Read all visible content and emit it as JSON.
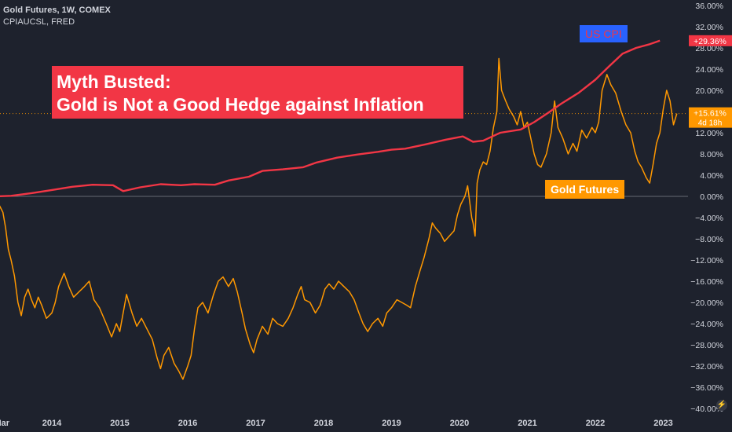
{
  "header": {
    "line1": "Gold Futures, 1W, COMEX",
    "line2": "CPIAUCSL, FRED"
  },
  "banner": {
    "line1": "Myth Busted:",
    "line2": "Gold is Not a Good Hedge against Inflation"
  },
  "annotations": {
    "cpi": "US CPI",
    "gold": "Gold Futures"
  },
  "badge_icon": "lightning-icon",
  "badge_glyph": "⚡",
  "colors": {
    "background": "#1e222d",
    "cpi": "#f23645",
    "gold": "#ff9800",
    "cpi_tag_bg": "#2962ff",
    "axis_text": "#d1d4dc",
    "zero_line": "#787b86"
  },
  "chart_data": {
    "type": "line",
    "x_axis": {
      "labels": [
        "Mar",
        "2014",
        "2015",
        "2016",
        "2017",
        "2018",
        "2019",
        "2020",
        "2021",
        "2022",
        "2023"
      ],
      "range": [
        2013.16,
        2023.25
      ]
    },
    "y_axis": {
      "unit": "%",
      "ticks": [
        36,
        32,
        28,
        24,
        20,
        16,
        12,
        8,
        4,
        0,
        -4,
        -8,
        -12,
        -16,
        -20,
        -24,
        -28,
        -32,
        -36,
        -40
      ],
      "tick_labels": [
        "36.00%",
        "32.00%",
        "28.00%",
        "24.00%",
        "20.00%",
        "16.00%",
        "12.00%",
        "8.00%",
        "4.00%",
        "0.00%",
        "−4.00%",
        "−8.00%",
        "−12.00%",
        "−16.00%",
        "−20.00%",
        "−24.00%",
        "−28.00%",
        "−32.00%",
        "−36.00%",
        "−40.00%"
      ],
      "range": [
        -40,
        36
      ],
      "position": "right"
    },
    "zero_line": 0,
    "last_value_labels": {
      "cpi": "+29.36%",
      "gold": "+15.61%",
      "gold_countdown": "4d 18h"
    },
    "series": [
      {
        "name": "CPIAUCSL, FRED",
        "color": "#f23645",
        "last": 29.36,
        "points": [
          [
            2013.16,
            0.0
          ],
          [
            2013.4,
            0.1
          ],
          [
            2013.7,
            0.6
          ],
          [
            2014.0,
            1.2
          ],
          [
            2014.3,
            1.8
          ],
          [
            2014.6,
            2.2
          ],
          [
            2014.9,
            2.1
          ],
          [
            2015.05,
            1.0
          ],
          [
            2015.3,
            1.7
          ],
          [
            2015.6,
            2.3
          ],
          [
            2015.9,
            2.1
          ],
          [
            2016.1,
            2.3
          ],
          [
            2016.4,
            2.2
          ],
          [
            2016.6,
            3.0
          ],
          [
            2016.9,
            3.7
          ],
          [
            2017.1,
            4.8
          ],
          [
            2017.4,
            5.1
          ],
          [
            2017.7,
            5.5
          ],
          [
            2017.9,
            6.4
          ],
          [
            2018.2,
            7.3
          ],
          [
            2018.5,
            7.9
          ],
          [
            2018.8,
            8.4
          ],
          [
            2019.0,
            8.8
          ],
          [
            2019.2,
            9.0
          ],
          [
            2019.5,
            9.8
          ],
          [
            2019.8,
            10.7
          ],
          [
            2020.05,
            11.3
          ],
          [
            2020.2,
            10.3
          ],
          [
            2020.35,
            10.5
          ],
          [
            2020.6,
            12.0
          ],
          [
            2020.9,
            12.6
          ],
          [
            2021.1,
            14.0
          ],
          [
            2021.3,
            15.7
          ],
          [
            2021.5,
            17.5
          ],
          [
            2021.75,
            19.5
          ],
          [
            2022.0,
            22.0
          ],
          [
            2022.2,
            24.5
          ],
          [
            2022.4,
            26.9
          ],
          [
            2022.6,
            28.0
          ],
          [
            2022.8,
            28.7
          ],
          [
            2022.95,
            29.36
          ]
        ]
      },
      {
        "name": "Gold Futures, 1W, COMEX",
        "color": "#ff9800",
        "last": 15.61,
        "points": [
          [
            2013.16,
            0
          ],
          [
            2013.22,
            -1.5
          ],
          [
            2013.28,
            -3.0
          ],
          [
            2013.32,
            -6.0
          ],
          [
            2013.36,
            -10.0
          ],
          [
            2013.4,
            -12.0
          ],
          [
            2013.45,
            -15.0
          ],
          [
            2013.5,
            -20.0
          ],
          [
            2013.55,
            -22.5
          ],
          [
            2013.6,
            -19.0
          ],
          [
            2013.65,
            -17.5
          ],
          [
            2013.7,
            -19.5
          ],
          [
            2013.75,
            -21.0
          ],
          [
            2013.8,
            -19.0
          ],
          [
            2013.85,
            -20.5
          ],
          [
            2013.92,
            -23.0
          ],
          [
            2014.0,
            -22.0
          ],
          [
            2014.05,
            -20.0
          ],
          [
            2014.1,
            -17.0
          ],
          [
            2014.18,
            -14.5
          ],
          [
            2014.25,
            -17.0
          ],
          [
            2014.32,
            -19.0
          ],
          [
            2014.4,
            -18.0
          ],
          [
            2014.48,
            -17.0
          ],
          [
            2014.55,
            -16.0
          ],
          [
            2014.62,
            -19.5
          ],
          [
            2014.7,
            -21.0
          ],
          [
            2014.8,
            -24.0
          ],
          [
            2014.88,
            -26.5
          ],
          [
            2014.95,
            -24.0
          ],
          [
            2015.0,
            -25.5
          ],
          [
            2015.05,
            -22.0
          ],
          [
            2015.1,
            -18.5
          ],
          [
            2015.18,
            -22.0
          ],
          [
            2015.25,
            -24.5
          ],
          [
            2015.32,
            -23.0
          ],
          [
            2015.4,
            -25.0
          ],
          [
            2015.48,
            -27.0
          ],
          [
            2015.55,
            -30.5
          ],
          [
            2015.6,
            -32.5
          ],
          [
            2015.65,
            -30.0
          ],
          [
            2015.72,
            -28.5
          ],
          [
            2015.8,
            -31.5
          ],
          [
            2015.87,
            -33.0
          ],
          [
            2015.93,
            -34.5
          ],
          [
            2016.0,
            -32.0
          ],
          [
            2016.05,
            -30.0
          ],
          [
            2016.1,
            -25.0
          ],
          [
            2016.15,
            -21.0
          ],
          [
            2016.22,
            -20.0
          ],
          [
            2016.3,
            -22.0
          ],
          [
            2016.38,
            -18.5
          ],
          [
            2016.45,
            -16.0
          ],
          [
            2016.52,
            -15.2
          ],
          [
            2016.6,
            -17.0
          ],
          [
            2016.67,
            -15.5
          ],
          [
            2016.73,
            -18.0
          ],
          [
            2016.8,
            -22.0
          ],
          [
            2016.85,
            -25.0
          ],
          [
            2016.92,
            -28.0
          ],
          [
            2016.97,
            -29.5
          ],
          [
            2017.02,
            -27.0
          ],
          [
            2017.1,
            -24.5
          ],
          [
            2017.18,
            -26.0
          ],
          [
            2017.25,
            -23.0
          ],
          [
            2017.32,
            -24.0
          ],
          [
            2017.4,
            -24.5
          ],
          [
            2017.48,
            -23.0
          ],
          [
            2017.55,
            -21.0
          ],
          [
            2017.62,
            -18.5
          ],
          [
            2017.67,
            -17.0
          ],
          [
            2017.72,
            -19.5
          ],
          [
            2017.8,
            -20.0
          ],
          [
            2017.88,
            -22.0
          ],
          [
            2017.95,
            -20.5
          ],
          [
            2018.02,
            -17.5
          ],
          [
            2018.08,
            -16.5
          ],
          [
            2018.15,
            -17.5
          ],
          [
            2018.22,
            -16.0
          ],
          [
            2018.3,
            -17.0
          ],
          [
            2018.38,
            -18.0
          ],
          [
            2018.45,
            -19.5
          ],
          [
            2018.52,
            -22.0
          ],
          [
            2018.58,
            -24.0
          ],
          [
            2018.65,
            -25.5
          ],
          [
            2018.72,
            -24.0
          ],
          [
            2018.8,
            -23.0
          ],
          [
            2018.87,
            -24.5
          ],
          [
            2018.93,
            -22.0
          ],
          [
            2019.0,
            -21.0
          ],
          [
            2019.08,
            -19.5
          ],
          [
            2019.15,
            -20.0
          ],
          [
            2019.22,
            -20.5
          ],
          [
            2019.28,
            -21.0
          ],
          [
            2019.35,
            -17.0
          ],
          [
            2019.42,
            -14.0
          ],
          [
            2019.48,
            -11.5
          ],
          [
            2019.55,
            -8.0
          ],
          [
            2019.6,
            -5.0
          ],
          [
            2019.65,
            -6.0
          ],
          [
            2019.72,
            -7.0
          ],
          [
            2019.78,
            -8.5
          ],
          [
            2019.85,
            -7.5
          ],
          [
            2019.92,
            -6.5
          ],
          [
            2019.97,
            -3.5
          ],
          [
            2020.02,
            -1.5
          ],
          [
            2020.08,
            0.0
          ],
          [
            2020.12,
            2.0
          ],
          [
            2020.18,
            -4.0
          ],
          [
            2020.2,
            -5.0
          ],
          [
            2020.23,
            -7.5
          ],
          [
            2020.26,
            2.5
          ],
          [
            2020.3,
            5.0
          ],
          [
            2020.35,
            6.5
          ],
          [
            2020.4,
            6.0
          ],
          [
            2020.45,
            8.5
          ],
          [
            2020.5,
            13.0
          ],
          [
            2020.55,
            16.0
          ],
          [
            2020.58,
            26.0
          ],
          [
            2020.62,
            20.0
          ],
          [
            2020.68,
            18.0
          ],
          [
            2020.73,
            16.5
          ],
          [
            2020.8,
            15.0
          ],
          [
            2020.85,
            13.5
          ],
          [
            2020.9,
            16.0
          ],
          [
            2020.95,
            13.0
          ],
          [
            2021.0,
            14.0
          ],
          [
            2021.05,
            11.0
          ],
          [
            2021.1,
            8.0
          ],
          [
            2021.15,
            6.0
          ],
          [
            2021.2,
            5.5
          ],
          [
            2021.28,
            8.0
          ],
          [
            2021.35,
            12.0
          ],
          [
            2021.4,
            18.0
          ],
          [
            2021.45,
            13.0
          ],
          [
            2021.52,
            11.0
          ],
          [
            2021.6,
            8.0
          ],
          [
            2021.67,
            10.0
          ],
          [
            2021.73,
            8.5
          ],
          [
            2021.8,
            12.5
          ],
          [
            2021.87,
            11.0
          ],
          [
            2021.95,
            13.0
          ],
          [
            2022.0,
            12.0
          ],
          [
            2022.05,
            14.0
          ],
          [
            2022.1,
            20.0
          ],
          [
            2022.17,
            23.0
          ],
          [
            2022.23,
            21.0
          ],
          [
            2022.3,
            19.5
          ],
          [
            2022.38,
            16.0
          ],
          [
            2022.45,
            13.5
          ],
          [
            2022.52,
            12.0
          ],
          [
            2022.58,
            8.5
          ],
          [
            2022.63,
            6.5
          ],
          [
            2022.68,
            5.5
          ],
          [
            2022.75,
            3.5
          ],
          [
            2022.8,
            2.5
          ],
          [
            2022.85,
            6.0
          ],
          [
            2022.9,
            10.0
          ],
          [
            2022.95,
            12.0
          ],
          [
            2023.0,
            16.5
          ],
          [
            2023.05,
            20.0
          ],
          [
            2023.1,
            18.0
          ],
          [
            2023.15,
            13.5
          ],
          [
            2023.2,
            15.61
          ]
        ]
      }
    ]
  }
}
